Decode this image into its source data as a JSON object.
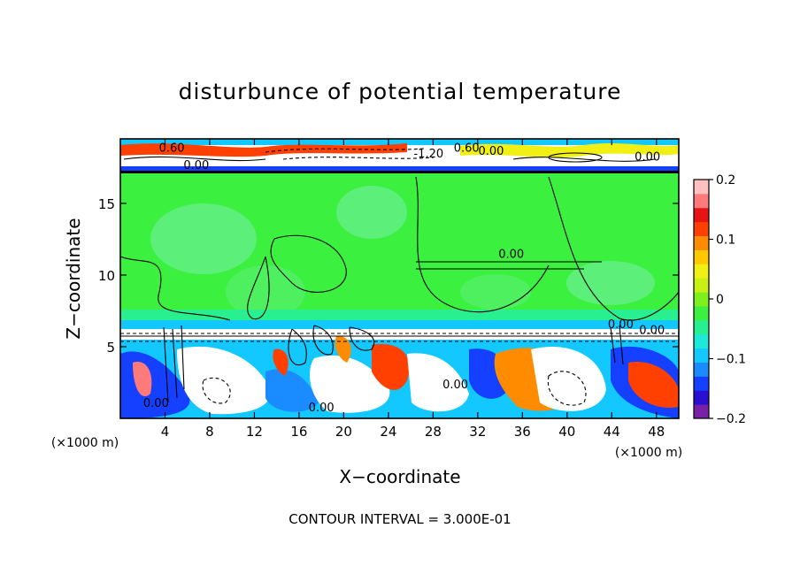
{
  "chart_data": {
    "type": "heatmap",
    "title": "disturbunce of potential temperature",
    "xlabel": "X−coordinate",
    "ylabel": "Z−coordinate",
    "x_unit": "(×1000 m)",
    "y_unit": "(×1000 m)",
    "xlim": [
      0,
      50
    ],
    "ylim": [
      0,
      19.5
    ],
    "x_ticks": [
      4,
      8,
      12,
      16,
      20,
      24,
      28,
      32,
      36,
      40,
      44,
      48
    ],
    "y_ticks": [
      5,
      10,
      15
    ],
    "colorbar": {
      "min": -0.2,
      "max": 0.2,
      "tick_values": [
        0.2,
        0.1,
        0,
        -0.1,
        -0.2
      ],
      "tick_labels": [
        "0.2",
        "0.1",
        "0",
        "−0.1",
        "−0.2"
      ],
      "colors": [
        "#7a1fa8",
        "#2a0fd0",
        "#1540ff",
        "#1a8cff",
        "#12c8ff",
        "#1ee8d8",
        "#28f090",
        "#3cf040",
        "#7df01e",
        "#c8f014",
        "#f0f014",
        "#ffc800",
        "#ff8c00",
        "#ff4000",
        "#e81414",
        "#ff7a7a",
        "#ffc0c0"
      ]
    },
    "contour_labels": [
      {
        "text": "0.60",
        "x": 4.6,
        "y": 18.6
      },
      {
        "text": "0.00",
        "x": 6.8,
        "y": 17.4
      },
      {
        "text": "-1.20",
        "x": 27.6,
        "y": 18.2
      },
      {
        "text": "0.60",
        "x": 31.0,
        "y": 18.6
      },
      {
        "text": "0.00",
        "x": 33.2,
        "y": 18.4
      },
      {
        "text": "0.00",
        "x": 47.2,
        "y": 18.0
      },
      {
        "text": "0.00",
        "x": 35.0,
        "y": 11.2
      },
      {
        "text": "0.00",
        "x": 44.8,
        "y": 6.3
      },
      {
        "text": "0.00",
        "x": 47.6,
        "y": 5.9
      },
      {
        "text": "0.00",
        "x": 30.0,
        "y": 2.1
      },
      {
        "text": "0.00",
        "x": 18.0,
        "y": 0.5
      },
      {
        "text": "0.00",
        "x": 3.2,
        "y": 0.8
      }
    ],
    "contour_interval_text": "CONTOUR INTERVAL = 3.000E-01"
  }
}
